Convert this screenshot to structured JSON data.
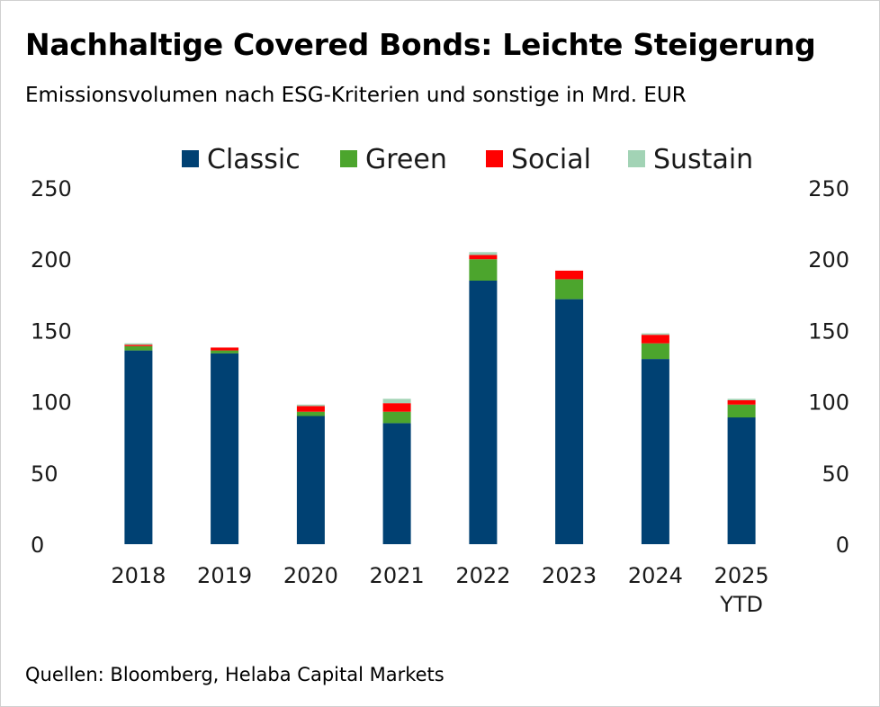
{
  "title": "Nachhaltige Covered Bonds: Leichte Steigerung",
  "subtitle": "Emissionsvolumen nach ESG-Kriterien und sonstige in Mrd. EUR",
  "source": "Quellen: Bloomberg, Helaba Capital Markets",
  "chart_data": {
    "type": "bar",
    "stacked": true,
    "categories": [
      "2018",
      "2019",
      "2020",
      "2021",
      "2022",
      "2023",
      "2024",
      "2025\nYTD"
    ],
    "series": [
      {
        "name": "Classic",
        "color": "#004173",
        "values": [
          136,
          134,
          90,
          85,
          185,
          172,
          130,
          89
        ]
      },
      {
        "name": "Green",
        "color": "#4ca52d",
        "values": [
          3,
          2,
          3,
          8,
          15,
          14,
          11,
          9
        ]
      },
      {
        "name": "Social",
        "color": "#ff0000",
        "values": [
          1,
          2,
          4,
          6,
          3,
          6,
          6,
          3
        ]
      },
      {
        "name": "Sustain",
        "color": "#a2d3b5",
        "values": [
          1,
          0,
          1,
          3,
          2,
          0,
          1,
          1
        ]
      }
    ],
    "ylim": [
      0,
      250
    ],
    "yticks": [
      0,
      50,
      100,
      150,
      200,
      250
    ],
    "secondary_axis": true,
    "grid": false,
    "legend": "top"
  }
}
